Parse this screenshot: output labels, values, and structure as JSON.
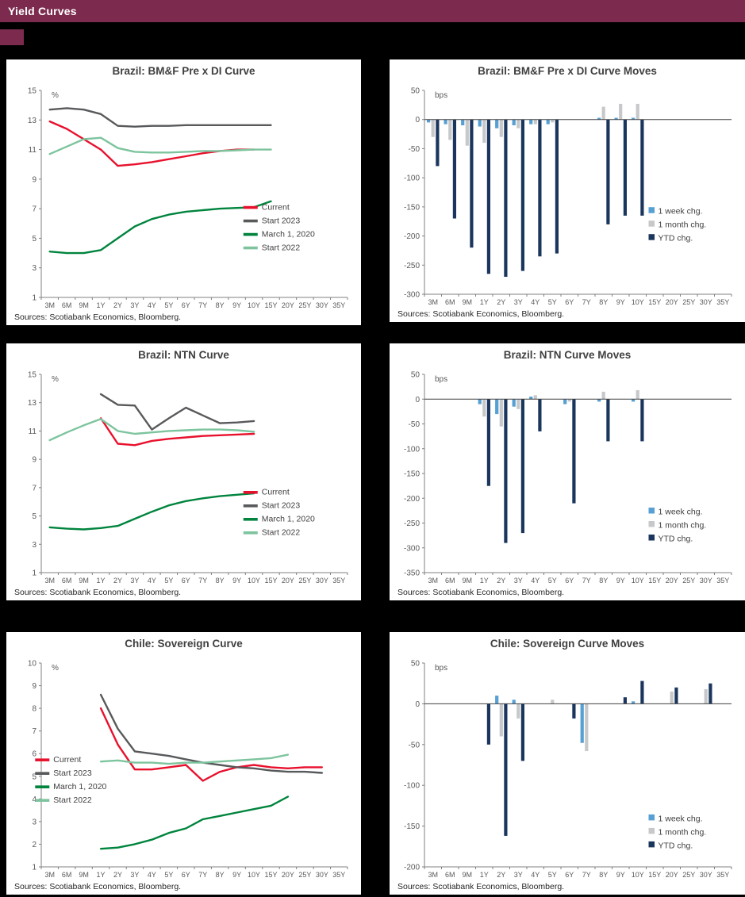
{
  "header": {
    "title": "Yield Curves"
  },
  "colors": {
    "header_bar": "#7c2b4f",
    "background": "#000000",
    "panel": "#ffffff",
    "axis": "#808080",
    "tick_text": "#595959",
    "title_text": "#404040",
    "current_red": "#e8112d",
    "start2023_gray": "#58595b",
    "march2020_green": "#00843d",
    "start2022_green": "#7dc49e",
    "week_blue": "#56a0d3",
    "month_gray": "#c7c8ca",
    "ytd_navy": "#1b365d"
  },
  "chart_data": [
    {
      "type": "line",
      "title": "Brazil: BM&F Pre x DI Curve",
      "sources": "Sources: Scotiabank Economics, Bloomberg.",
      "ylabel": "%",
      "ylim": [
        1,
        15
      ],
      "ytick_step": 2,
      "grid": false,
      "legend": {
        "x": 0.66,
        "y": 0.57
      },
      "categories": [
        "3M",
        "6M",
        "9M",
        "1Y",
        "2Y",
        "3Y",
        "4Y",
        "5Y",
        "6Y",
        "7Y",
        "8Y",
        "9Y",
        "10Y",
        "15Y",
        "20Y",
        "25Y",
        "30Y",
        "35Y"
      ],
      "series": [
        {
          "name": "Current",
          "color": "#e8112d",
          "values": [
            12.9,
            12.4,
            11.7,
            11.0,
            9.9,
            10.0,
            10.15,
            10.35,
            10.55,
            10.75,
            10.9,
            11.0,
            11.0,
            null,
            null,
            null,
            null,
            null
          ]
        },
        {
          "name": "Start 2023",
          "color": "#58595b",
          "values": [
            13.7,
            13.8,
            13.7,
            13.4,
            12.6,
            12.55,
            12.6,
            12.6,
            12.65,
            12.65,
            12.65,
            12.65,
            12.65,
            12.65,
            null,
            null,
            null,
            null
          ]
        },
        {
          "name": "March 1, 2020",
          "color": "#00843d",
          "values": [
            4.1,
            4.0,
            4.0,
            4.2,
            5.0,
            5.8,
            6.3,
            6.6,
            6.8,
            6.9,
            7.0,
            7.05,
            7.1,
            7.5,
            null,
            null,
            null,
            null
          ]
        },
        {
          "name": "Start 2022",
          "color": "#7dc49e",
          "values": [
            10.7,
            11.2,
            11.7,
            11.8,
            11.1,
            10.85,
            10.8,
            10.8,
            10.85,
            10.9,
            10.9,
            10.95,
            11.0,
            11.0,
            null,
            null,
            null,
            null
          ]
        }
      ]
    },
    {
      "type": "bar",
      "title": "Brazil: BM&F Pre x DI Curve Moves",
      "sources": "Sources: Scotiabank Economics, Bloomberg.",
      "ylabel": "bps",
      "ylim": [
        -300,
        50
      ],
      "ytick_step": 50,
      "grid": false,
      "legend": {
        "x": 0.73,
        "y": 0.6
      },
      "categories": [
        "3M",
        "6M",
        "9M",
        "1Y",
        "2Y",
        "3Y",
        "4Y",
        "5Y",
        "6Y",
        "7Y",
        "8Y",
        "9Y",
        "10Y",
        "15Y",
        "20Y",
        "25Y",
        "30Y",
        "35Y"
      ],
      "series": [
        {
          "name": "1 week chg.",
          "color": "#56a0d3",
          "values": [
            -5,
            -8,
            -10,
            -12,
            -15,
            -10,
            -8,
            -8,
            null,
            null,
            3,
            3,
            3,
            null,
            null,
            null,
            null,
            null
          ]
        },
        {
          "name": "1 month chg.",
          "color": "#c7c8ca",
          "values": [
            -30,
            -35,
            -45,
            -40,
            -30,
            -15,
            -8,
            -5,
            null,
            null,
            22,
            27,
            27,
            null,
            null,
            null,
            null,
            null
          ]
        },
        {
          "name": "YTD chg.",
          "color": "#1b365d",
          "values": [
            -80,
            -170,
            -220,
            -265,
            -270,
            -260,
            -235,
            -230,
            null,
            null,
            -180,
            -165,
            -165,
            null,
            null,
            null,
            null,
            null
          ]
        }
      ]
    },
    {
      "type": "line",
      "title": "Brazil: NTN Curve",
      "sources": "Sources: Scotiabank Economics, Bloomberg.",
      "ylabel": "%",
      "ylim": [
        1,
        15
      ],
      "ytick_step": 2,
      "grid": false,
      "legend": {
        "x": 0.66,
        "y": 0.6
      },
      "categories": [
        "3M",
        "6M",
        "9M",
        "1Y",
        "2Y",
        "3Y",
        "4Y",
        "5Y",
        "6Y",
        "7Y",
        "8Y",
        "9Y",
        "10Y",
        "15Y",
        "20Y",
        "25Y",
        "30Y",
        "35Y"
      ],
      "series": [
        {
          "name": "Current",
          "color": "#e8112d",
          "values": [
            null,
            null,
            null,
            11.9,
            10.1,
            10.0,
            10.3,
            10.45,
            10.55,
            10.65,
            10.7,
            10.75,
            10.8,
            null,
            null,
            null,
            null,
            null
          ]
        },
        {
          "name": "Start 2023",
          "color": "#58595b",
          "values": [
            null,
            null,
            null,
            13.6,
            12.85,
            12.8,
            11.1,
            11.9,
            12.65,
            12.1,
            11.55,
            11.6,
            11.7,
            null,
            null,
            null,
            null,
            null
          ]
        },
        {
          "name": "March 1, 2020",
          "color": "#00843d",
          "values": [
            4.2,
            4.1,
            4.05,
            4.15,
            4.3,
            4.8,
            5.3,
            5.75,
            6.05,
            6.25,
            6.4,
            6.5,
            6.6,
            null,
            null,
            null,
            null,
            null
          ]
        },
        {
          "name": "Start 2022",
          "color": "#7dc49e",
          "values": [
            10.35,
            10.9,
            11.4,
            11.85,
            11.0,
            10.8,
            10.9,
            11.0,
            11.05,
            11.1,
            11.1,
            11.05,
            10.95,
            null,
            null,
            null,
            null,
            null
          ]
        }
      ]
    },
    {
      "type": "bar",
      "title": "Brazil: NTN Curve Moves",
      "sources": "Sources: Scotiabank Economics, Bloomberg.",
      "ylabel": "bps",
      "ylim": [
        -350,
        50
      ],
      "ytick_step": 50,
      "grid": false,
      "legend": {
        "x": 0.73,
        "y": 0.7
      },
      "categories": [
        "3M",
        "6M",
        "9M",
        "1Y",
        "2Y",
        "3Y",
        "4Y",
        "5Y",
        "6Y",
        "7Y",
        "8Y",
        "9Y",
        "10Y",
        "15Y",
        "20Y",
        "25Y",
        "30Y",
        "35Y"
      ],
      "series": [
        {
          "name": "1 week chg.",
          "color": "#56a0d3",
          "values": [
            null,
            null,
            null,
            -10,
            -30,
            -15,
            5,
            null,
            -10,
            null,
            -5,
            null,
            -5,
            null,
            null,
            null,
            null,
            null
          ]
        },
        {
          "name": "1 month chg.",
          "color": "#c7c8ca",
          "values": [
            null,
            null,
            null,
            -35,
            -55,
            -20,
            8,
            null,
            -5,
            null,
            15,
            null,
            18,
            null,
            null,
            null,
            null,
            null
          ]
        },
        {
          "name": "YTD chg.",
          "color": "#1b365d",
          "values": [
            null,
            null,
            null,
            -175,
            -290,
            -270,
            -65,
            null,
            -210,
            null,
            -85,
            null,
            -85,
            null,
            null,
            null,
            null,
            null
          ]
        }
      ]
    },
    {
      "type": "line",
      "title": "Chile: Sovereign Curve",
      "sources": "Sources: Scotiabank Economics, Bloomberg.",
      "ylabel": "%",
      "ylim": [
        1,
        10
      ],
      "ytick_step": 1,
      "grid": false,
      "legend": {
        "x": -0.02,
        "y": 0.48
      },
      "categories": [
        "3M",
        "6M",
        "9M",
        "1Y",
        "2Y",
        "3Y",
        "4Y",
        "5Y",
        "6Y",
        "7Y",
        "8Y",
        "9Y",
        "10Y",
        "15Y",
        "20Y",
        "25Y",
        "30Y",
        "35Y"
      ],
      "series": [
        {
          "name": "Current",
          "color": "#e8112d",
          "values": [
            null,
            null,
            null,
            8.0,
            6.4,
            5.3,
            5.3,
            5.4,
            5.5,
            4.8,
            5.2,
            5.4,
            5.5,
            5.4,
            5.35,
            5.4,
            5.4,
            null
          ]
        },
        {
          "name": "Start 2023",
          "color": "#58595b",
          "values": [
            null,
            null,
            null,
            8.6,
            7.1,
            6.1,
            6.0,
            5.9,
            5.75,
            5.6,
            5.5,
            5.4,
            5.35,
            5.25,
            5.2,
            5.2,
            5.15,
            null
          ]
        },
        {
          "name": "March 1, 2020",
          "color": "#00843d",
          "values": [
            null,
            null,
            null,
            1.8,
            1.85,
            2.0,
            2.2,
            2.5,
            2.7,
            3.1,
            3.25,
            3.4,
            3.55,
            3.7,
            4.1,
            null,
            null,
            null
          ]
        },
        {
          "name": "Start 2022",
          "color": "#7dc49e",
          "values": [
            null,
            null,
            null,
            5.65,
            5.7,
            5.6,
            5.6,
            5.55,
            5.6,
            5.6,
            5.65,
            5.7,
            5.75,
            5.8,
            5.95,
            null,
            null,
            null
          ]
        }
      ]
    },
    {
      "type": "bar",
      "title": "Chile: Sovereign Curve Moves",
      "sources": "Sources: Scotiabank Economics, Bloomberg.",
      "ylabel": "bps",
      "ylim": [
        -200,
        50
      ],
      "ytick_step": 50,
      "grid": false,
      "legend": {
        "x": 0.73,
        "y": 0.77
      },
      "categories": [
        "3M",
        "6M",
        "9M",
        "1Y",
        "2Y",
        "3Y",
        "4Y",
        "5Y",
        "6Y",
        "7Y",
        "8Y",
        "9Y",
        "10Y",
        "15Y",
        "20Y",
        "25Y",
        "30Y",
        "35Y"
      ],
      "series": [
        {
          "name": "1 week chg.",
          "color": "#56a0d3",
          "values": [
            null,
            null,
            null,
            null,
            10,
            5,
            null,
            null,
            null,
            -48,
            null,
            null,
            3,
            null,
            null,
            null,
            null,
            null
          ]
        },
        {
          "name": "1 month chg.",
          "color": "#c7c8ca",
          "values": [
            null,
            null,
            null,
            null,
            -40,
            -18,
            null,
            5,
            null,
            -58,
            null,
            null,
            null,
            null,
            15,
            null,
            18,
            null
          ]
        },
        {
          "name": "YTD chg.",
          "color": "#1b365d",
          "values": [
            null,
            null,
            null,
            -50,
            -162,
            -70,
            null,
            null,
            -18,
            null,
            null,
            8,
            28,
            null,
            20,
            null,
            25,
            null
          ]
        }
      ]
    }
  ]
}
